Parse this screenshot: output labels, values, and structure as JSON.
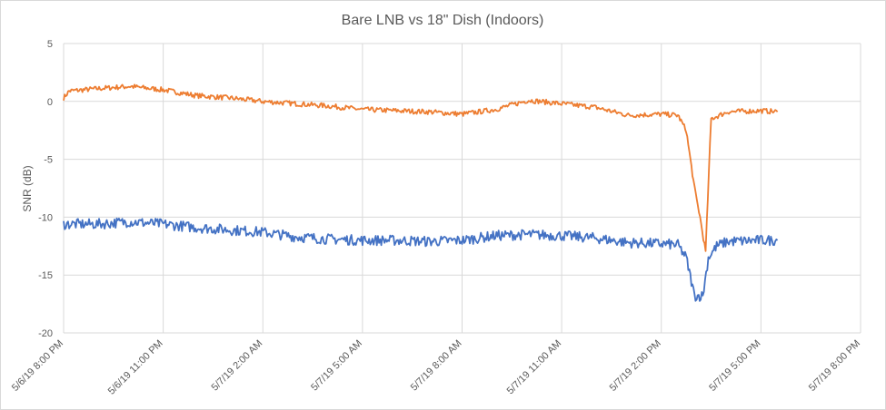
{
  "chart_data": {
    "type": "line",
    "title": "Bare LNB vs 18\" Dish (Indoors)",
    "xlabel": "",
    "ylabel": "SNR (dB)",
    "ylim": [
      -20,
      5
    ],
    "yticks": [
      5,
      0,
      -5,
      -10,
      -15,
      -20
    ],
    "xlim": [
      "2019-05-06T20:00",
      "2019-05-07T20:00"
    ],
    "xtick_labels": [
      "5/6/19 8:00 PM",
      "5/6/19 11:00 PM",
      "5/7/19 2:00 AM",
      "5/7/19 5:00 AM",
      "5/7/19 8:00 AM",
      "5/7/19 11:00 AM",
      "5/7/19 2:00 PM",
      "5/7/19 5:00 PM",
      "5/7/19 8:00 PM"
    ],
    "xticks": [
      "2019-05-06T20:00",
      "2019-05-06T23:00",
      "2019-05-07T02:00",
      "2019-05-07T05:00",
      "2019-05-07T08:00",
      "2019-05-07T11:00",
      "2019-05-07T14:00",
      "2019-05-07T17:00",
      "2019-05-07T20:00"
    ],
    "grid": true,
    "legend": "none",
    "series": [
      {
        "color": "#ED7D31",
        "x": [
          "2019-05-06T20:00",
          "2019-05-06T20:10",
          "2019-05-06T21:00",
          "2019-05-06T22:00",
          "2019-05-06T23:00",
          "2019-05-07T00:00",
          "2019-05-07T01:00",
          "2019-05-07T02:00",
          "2019-05-07T03:00",
          "2019-05-07T04:00",
          "2019-05-07T05:00",
          "2019-05-07T06:00",
          "2019-05-07T07:00",
          "2019-05-07T08:00",
          "2019-05-07T09:00",
          "2019-05-07T10:00",
          "2019-05-07T11:00",
          "2019-05-07T12:00",
          "2019-05-07T13:00",
          "2019-05-07T14:00",
          "2019-05-07T14:30",
          "2019-05-07T14:45",
          "2019-05-07T15:00",
          "2019-05-07T15:10",
          "2019-05-07T15:20",
          "2019-05-07T15:30",
          "2019-05-07T16:00",
          "2019-05-07T17:00",
          "2019-05-07T17:30"
        ],
        "y": [
          0.3,
          0.9,
          1.1,
          1.3,
          1.0,
          0.5,
          0.3,
          0.0,
          -0.2,
          -0.4,
          -0.7,
          -0.8,
          -0.9,
          -1.1,
          -0.7,
          0.1,
          -0.2,
          -0.5,
          -1.2,
          -1.1,
          -1.2,
          -2.5,
          -7.5,
          -10.0,
          -13.0,
          -1.5,
          -0.9,
          -0.8,
          -0.9
        ]
      },
      {
        "color": "#4472C4",
        "x": [
          "2019-05-06T20:00",
          "2019-05-06T21:00",
          "2019-05-06T22:00",
          "2019-05-06T23:00",
          "2019-05-07T00:00",
          "2019-05-07T01:00",
          "2019-05-07T02:00",
          "2019-05-07T03:00",
          "2019-05-07T04:00",
          "2019-05-07T05:00",
          "2019-05-07T06:00",
          "2019-05-07T07:00",
          "2019-05-07T08:00",
          "2019-05-07T09:00",
          "2019-05-07T10:00",
          "2019-05-07T11:00",
          "2019-05-07T12:00",
          "2019-05-07T13:00",
          "2019-05-07T14:00",
          "2019-05-07T14:30",
          "2019-05-07T14:45",
          "2019-05-07T15:00",
          "2019-05-07T15:15",
          "2019-05-07T15:25",
          "2019-05-07T15:40",
          "2019-05-07T16:00",
          "2019-05-07T17:00",
          "2019-05-07T17:30"
        ],
        "y": [
          -10.6,
          -10.6,
          -10.4,
          -10.6,
          -10.9,
          -11.1,
          -11.3,
          -11.7,
          -11.9,
          -12.0,
          -12.0,
          -12.1,
          -12.0,
          -11.6,
          -11.5,
          -11.6,
          -11.8,
          -12.2,
          -12.3,
          -12.4,
          -13.5,
          -16.8,
          -16.8,
          -13.5,
          -12.5,
          -12.1,
          -12.0,
          -12.0
        ]
      }
    ]
  }
}
